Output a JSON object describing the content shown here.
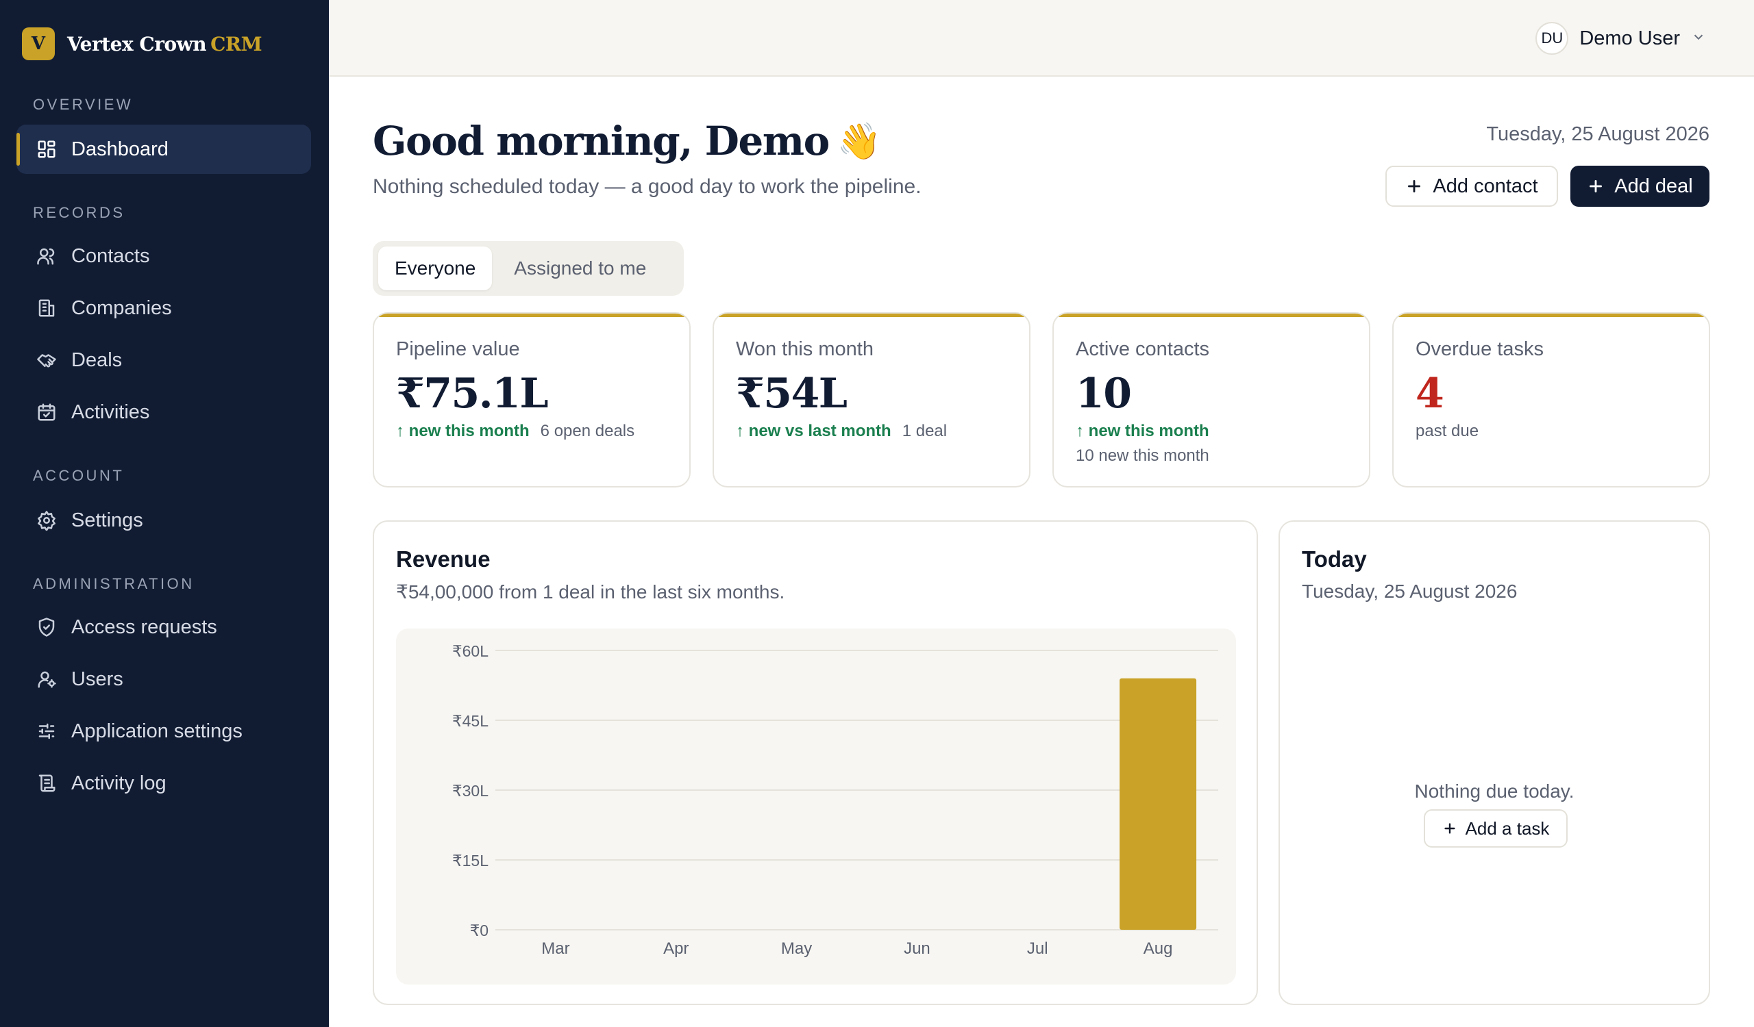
{
  "brand": {
    "mark": "V",
    "name": "Vertex Crown",
    "accent": "CRM"
  },
  "sidebar": {
    "sections": [
      {
        "label": "OVERVIEW"
      },
      {
        "label": "RECORDS"
      },
      {
        "label": "ACCOUNT"
      },
      {
        "label": "ADMINISTRATION"
      }
    ],
    "items": [
      {
        "label": "Dashboard",
        "icon": "dashboard-icon",
        "active": true
      },
      {
        "label": "Contacts",
        "icon": "users-icon"
      },
      {
        "label": "Companies",
        "icon": "building-icon"
      },
      {
        "label": "Deals",
        "icon": "handshake-icon"
      },
      {
        "label": "Activities",
        "icon": "calendar-check-icon"
      },
      {
        "label": "Settings",
        "icon": "gear-icon"
      },
      {
        "label": "Access requests",
        "icon": "shield-check-icon"
      },
      {
        "label": "Users",
        "icon": "user-cog-icon"
      },
      {
        "label": "Application settings",
        "icon": "sliders-icon"
      },
      {
        "label": "Activity log",
        "icon": "scroll-icon"
      }
    ]
  },
  "header": {
    "avatar_initials": "DU",
    "user_name": "Demo User"
  },
  "main": {
    "greeting": "Good morning, Demo",
    "greeting_emoji": "👋",
    "subtitle": "Nothing scheduled today — a good day to work the pipeline.",
    "date": "Tuesday, 25 August 2026",
    "add_contact_label": "Add contact",
    "add_deal_label": "Add deal",
    "filter_tabs": [
      "Everyone",
      "Assigned to me"
    ]
  },
  "kpis": [
    {
      "label": "Pipeline value",
      "value": "₹75.1L",
      "trend": "↑ new this month",
      "note": "6 open deals"
    },
    {
      "label": "Won this month",
      "value": "₹54L",
      "trend": "↑ new vs last month",
      "note": "1 deal"
    },
    {
      "label": "Active contacts",
      "value": "10",
      "trend": "↑ new this month",
      "note": "10 new this month"
    },
    {
      "label": "Overdue tasks",
      "value": "4",
      "note": "past due"
    }
  ],
  "revenue": {
    "title": "Revenue",
    "subtitle": "₹54,00,000 from 1 deal in the last six months."
  },
  "today": {
    "title": "Today",
    "date": "Tuesday, 25 August 2026",
    "empty_text": "Nothing due today.",
    "add_task_label": "Add a task"
  },
  "colors": {
    "accent": "#c9a227",
    "sidebar_bg": "#111c33",
    "positive": "#1a7f4e",
    "danger": "#c0261d"
  },
  "chart_data": {
    "type": "bar",
    "title": "Revenue",
    "categories": [
      "Mar",
      "Apr",
      "May",
      "Jun",
      "Jul",
      "Aug"
    ],
    "values": [
      0,
      0,
      0,
      0,
      0,
      54
    ],
    "unit": "L",
    "y_ticks": [
      "₹0",
      "₹15L",
      "₹30L",
      "₹45L",
      "₹60L"
    ],
    "ylim": [
      0,
      60
    ],
    "grid": true,
    "bar_color": "#c9a227"
  }
}
